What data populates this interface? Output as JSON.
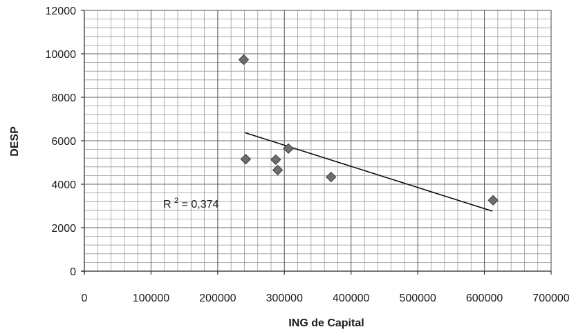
{
  "chart_data": {
    "type": "scatter",
    "xlabel": "ING de Capital",
    "ylabel": "DESP",
    "xlim": [
      0,
      700000
    ],
    "ylim": [
      0,
      12000
    ],
    "x_ticks": [
      0,
      100000,
      200000,
      300000,
      400000,
      500000,
      600000,
      700000
    ],
    "x_tick_labels": [
      "0",
      "100000",
      "200000",
      "300000",
      "400000",
      "500000",
      "600000",
      "700000"
    ],
    "y_ticks": [
      0,
      2000,
      4000,
      6000,
      8000,
      10000,
      12000
    ],
    "y_tick_labels": [
      "0",
      "2000",
      "4000",
      "6000",
      "8000",
      "10000",
      "12000"
    ],
    "grid": "major and minor",
    "points": [
      {
        "x": 239000,
        "y": 9730
      },
      {
        "x": 242000,
        "y": 5150
      },
      {
        "x": 287000,
        "y": 5130
      },
      {
        "x": 290000,
        "y": 4650
      },
      {
        "x": 306000,
        "y": 5640
      },
      {
        "x": 370000,
        "y": 4330
      },
      {
        "x": 613000,
        "y": 3260
      }
    ],
    "trendline": {
      "type": "linear",
      "x_start": 241000,
      "y_start": 6370,
      "x_end": 612000,
      "y_end": 2760
    },
    "annotation": {
      "prefix": "R",
      "superscript": "2",
      "suffix": " = 0,374"
    },
    "colors": {
      "marker": "#6e6e6e",
      "marker_edge": "#3c3c3c",
      "grid": "#9a9a9a",
      "trendline": "#111111",
      "text": "#1a1a1a"
    }
  }
}
